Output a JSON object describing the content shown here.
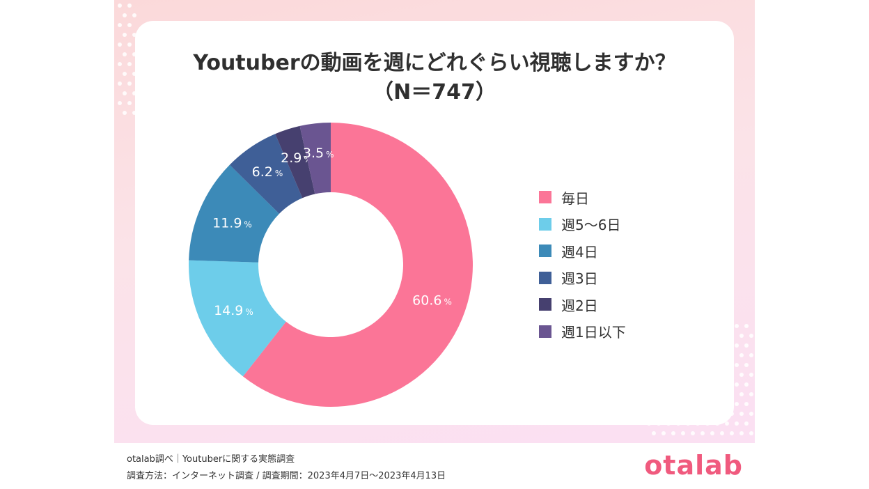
{
  "chart_data": {
    "type": "pie",
    "variant": "donut",
    "title": "Youtuberの動画を週にどれぐらい視聴しますか？",
    "subtitle": "（N＝747）",
    "unit": "%",
    "categories": [
      "毎日",
      "週5〜6日",
      "週4日",
      "週3日",
      "週2日",
      "週1日以下"
    ],
    "values": [
      60.6,
      14.9,
      11.9,
      6.2,
      2.9,
      3.5
    ],
    "value_labels": [
      "60.6",
      "14.9",
      "11.9",
      "6.2",
      "2.9",
      "3.5"
    ],
    "colors": [
      "#fb7597",
      "#6dcdea",
      "#3c8ab8",
      "#3f5f97",
      "#46406f",
      "#6a5591"
    ],
    "legend_position": "right"
  },
  "footer": {
    "line1": "otalab調べ｜Youtuberに関する実態調査",
    "line2": "調査方法：インターネット調査 / 調査期間：2023年4月7日〜2023年4月13日"
  },
  "brand": "otalab"
}
